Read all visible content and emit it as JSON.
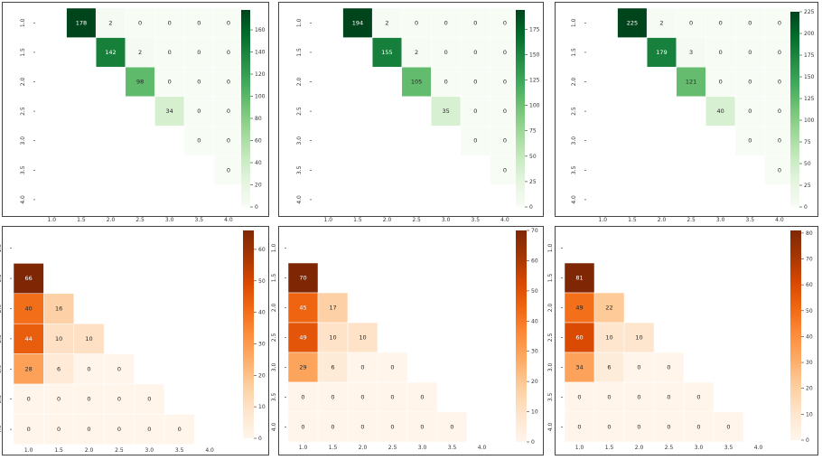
{
  "colormaps": {
    "green": [
      "#f7fcf5",
      "#e5f5e0",
      "#c7e9c0",
      "#a1d99b",
      "#74c476",
      "#41ab5d",
      "#238b45",
      "#006d2c",
      "#00441b"
    ],
    "orange": [
      "#fff5eb",
      "#fee6ce",
      "#fdd0a2",
      "#fdae6b",
      "#fd8d3c",
      "#f16913",
      "#d94801",
      "#a63603",
      "#7f2704"
    ]
  },
  "chart_data": [
    {
      "type": "heatmap",
      "colormap": "green",
      "mask": "lower",
      "x_ticks": [
        "1.0",
        "1.5",
        "2.0",
        "2.5",
        "3.0",
        "3.5",
        "4.0"
      ],
      "y_ticks": [
        "1.0",
        "1.5",
        "2.0",
        "2.5",
        "3.0",
        "3.5",
        "4.0"
      ],
      "matrix": [
        [
          null,
          178,
          2,
          0,
          0,
          0,
          0
        ],
        [
          null,
          null,
          142,
          2,
          0,
          0,
          0
        ],
        [
          null,
          null,
          null,
          98,
          0,
          0,
          0
        ],
        [
          null,
          null,
          null,
          null,
          34,
          0,
          0
        ],
        [
          null,
          null,
          null,
          null,
          null,
          0,
          0
        ],
        [
          null,
          null,
          null,
          null,
          null,
          null,
          0
        ],
        [
          null,
          null,
          null,
          null,
          null,
          null,
          null
        ]
      ],
      "vmin": 0,
      "vmax": 178,
      "colorbar_ticks": [
        0,
        20,
        40,
        60,
        80,
        100,
        120,
        140,
        160
      ]
    },
    {
      "type": "heatmap",
      "colormap": "green",
      "mask": "lower",
      "x_ticks": [
        "1.0",
        "1.5",
        "2.0",
        "2.5",
        "3.0",
        "3.5",
        "4.0"
      ],
      "y_ticks": [
        "1.0",
        "1.5",
        "2.0",
        "2.5",
        "3.0",
        "3.5",
        "4.0"
      ],
      "matrix": [
        [
          null,
          194,
          2,
          0,
          0,
          0,
          0
        ],
        [
          null,
          null,
          155,
          2,
          0,
          0,
          0
        ],
        [
          null,
          null,
          null,
          105,
          0,
          0,
          0
        ],
        [
          null,
          null,
          null,
          null,
          35,
          0,
          0
        ],
        [
          null,
          null,
          null,
          null,
          null,
          0,
          0
        ],
        [
          null,
          null,
          null,
          null,
          null,
          null,
          0
        ],
        [
          null,
          null,
          null,
          null,
          null,
          null,
          null
        ]
      ],
      "vmin": 0,
      "vmax": 194,
      "colorbar_ticks": [
        0,
        25,
        50,
        75,
        100,
        125,
        150,
        175
      ]
    },
    {
      "type": "heatmap",
      "colormap": "green",
      "mask": "lower",
      "x_ticks": [
        "1.0",
        "1.5",
        "2.0",
        "2.5",
        "3.0",
        "3.5",
        "4.0"
      ],
      "y_ticks": [
        "1.0",
        "1.5",
        "2.0",
        "2.5",
        "3.0",
        "3.5",
        "4.0"
      ],
      "matrix": [
        [
          null,
          225,
          2,
          0,
          0,
          0,
          0
        ],
        [
          null,
          null,
          179,
          3,
          0,
          0,
          0
        ],
        [
          null,
          null,
          null,
          121,
          0,
          0,
          0
        ],
        [
          null,
          null,
          null,
          null,
          40,
          0,
          0
        ],
        [
          null,
          null,
          null,
          null,
          null,
          0,
          0
        ],
        [
          null,
          null,
          null,
          null,
          null,
          null,
          0
        ],
        [
          null,
          null,
          null,
          null,
          null,
          null,
          null
        ]
      ],
      "vmin": 0,
      "vmax": 225,
      "colorbar_ticks": [
        0,
        25,
        50,
        75,
        100,
        125,
        150,
        175,
        200,
        225
      ]
    },
    {
      "type": "heatmap",
      "colormap": "orange",
      "mask": "upper",
      "x_ticks": [
        "1.0",
        "1.5",
        "2.0",
        "2.5",
        "3.0",
        "3.5",
        "4.0"
      ],
      "y_ticks": [
        "1.0",
        "1.5",
        "2.0",
        "2.5",
        "3.0",
        "3.5",
        "4.0"
      ],
      "matrix": [
        [
          null,
          null,
          null,
          null,
          null,
          null,
          null
        ],
        [
          66,
          null,
          null,
          null,
          null,
          null,
          null
        ],
        [
          40,
          16,
          null,
          null,
          null,
          null,
          null
        ],
        [
          44,
          10,
          10,
          null,
          null,
          null,
          null
        ],
        [
          28,
          6,
          0,
          0,
          null,
          null,
          null
        ],
        [
          0,
          0,
          0,
          0,
          0,
          null,
          null
        ],
        [
          0,
          0,
          0,
          0,
          0,
          0,
          null
        ]
      ],
      "vmin": 0,
      "vmax": 66,
      "colorbar_ticks": [
        0,
        10,
        20,
        30,
        40,
        50,
        60
      ]
    },
    {
      "type": "heatmap",
      "colormap": "orange",
      "mask": "upper",
      "x_ticks": [
        "1.0",
        "1.5",
        "2.0",
        "2.5",
        "3.0",
        "3.5",
        "4.0"
      ],
      "y_ticks": [
        "1.0",
        "1.5",
        "2.0",
        "2.5",
        "3.0",
        "3.5",
        "4.0"
      ],
      "matrix": [
        [
          null,
          null,
          null,
          null,
          null,
          null,
          null
        ],
        [
          70,
          null,
          null,
          null,
          null,
          null,
          null
        ],
        [
          45,
          17,
          null,
          null,
          null,
          null,
          null
        ],
        [
          49,
          10,
          10,
          null,
          null,
          null,
          null
        ],
        [
          29,
          6,
          0,
          0,
          null,
          null,
          null
        ],
        [
          0,
          0,
          0,
          0,
          0,
          null,
          null
        ],
        [
          0,
          0,
          0,
          0,
          0,
          0,
          null
        ]
      ],
      "vmin": 0,
      "vmax": 70,
      "colorbar_ticks": [
        0,
        10,
        20,
        30,
        40,
        50,
        60,
        70
      ]
    },
    {
      "type": "heatmap",
      "colormap": "orange",
      "mask": "upper",
      "x_ticks": [
        "1.0",
        "1.5",
        "2.0",
        "2.5",
        "3.0",
        "3.5",
        "4.0"
      ],
      "y_ticks": [
        "1.0",
        "1.5",
        "2.0",
        "2.5",
        "3.0",
        "3.5",
        "4.0"
      ],
      "matrix": [
        [
          null,
          null,
          null,
          null,
          null,
          null,
          null
        ],
        [
          81,
          null,
          null,
          null,
          null,
          null,
          null
        ],
        [
          49,
          22,
          null,
          null,
          null,
          null,
          null
        ],
        [
          60,
          10,
          10,
          null,
          null,
          null,
          null
        ],
        [
          34,
          6,
          0,
          0,
          null,
          null,
          null
        ],
        [
          0,
          0,
          0,
          0,
          0,
          null,
          null
        ],
        [
          0,
          0,
          0,
          0,
          0,
          0,
          null
        ]
      ],
      "vmin": 0,
      "vmax": 81,
      "colorbar_ticks": [
        0,
        10,
        20,
        30,
        40,
        50,
        60,
        70,
        80
      ]
    }
  ]
}
